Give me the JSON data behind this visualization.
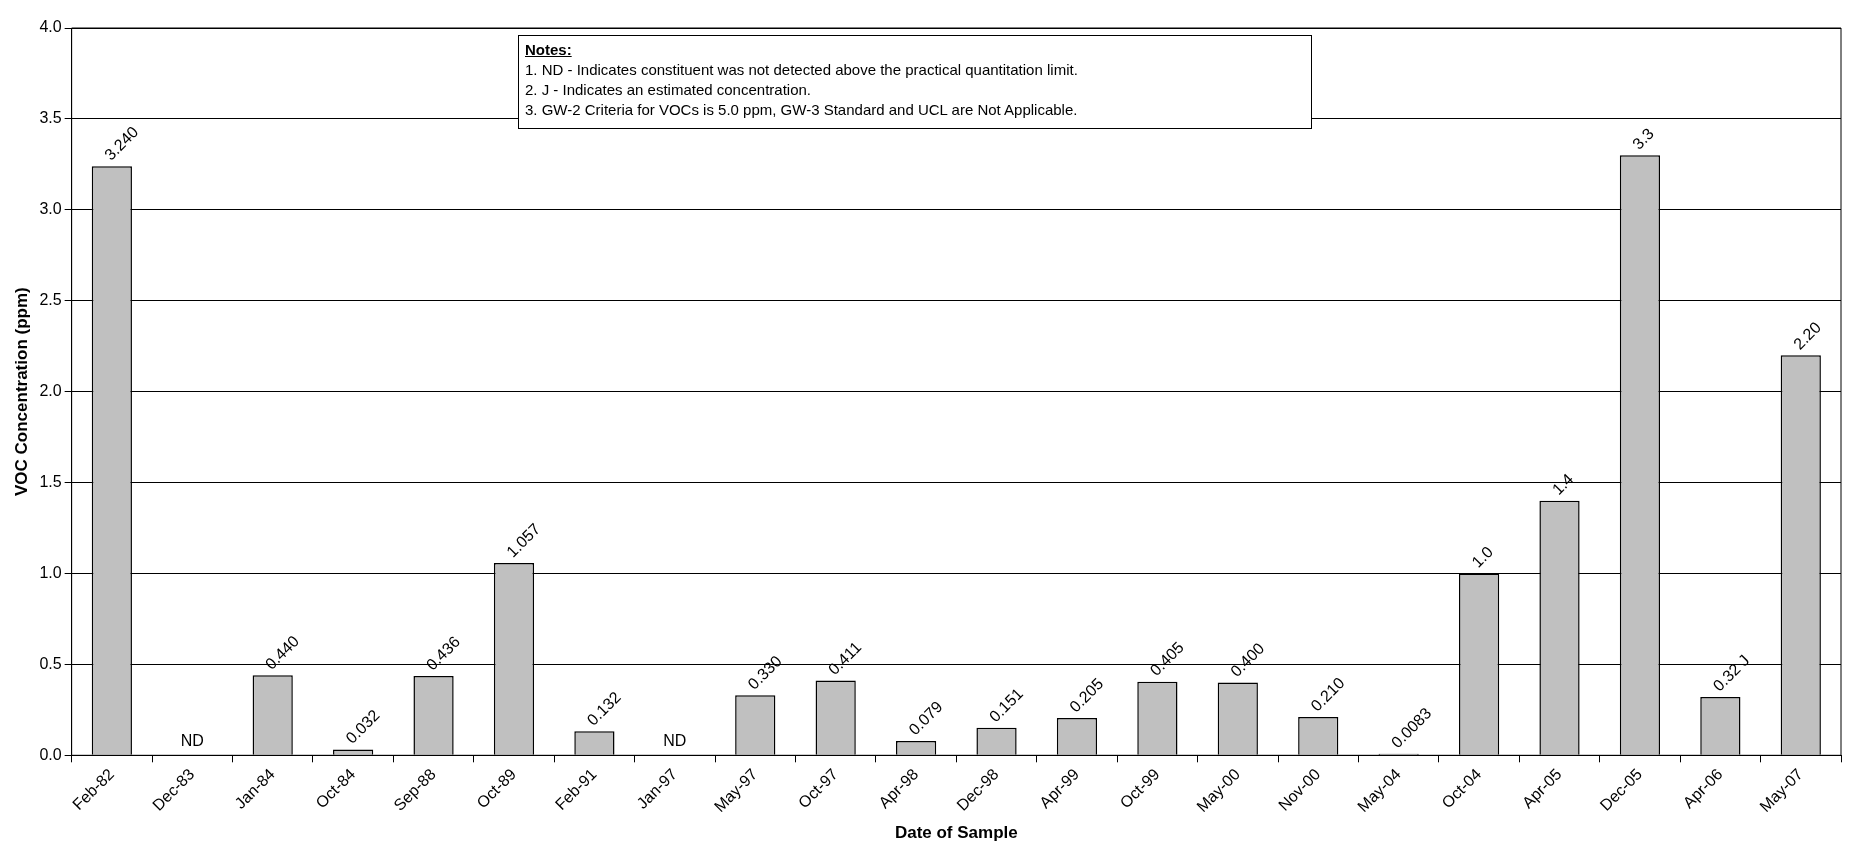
{
  "chart_data": {
    "type": "bar",
    "xlabel": "Date of Sample",
    "ylabel": "VOC Concentration (ppm)",
    "categories": [
      "Feb-82",
      "Dec-83",
      "Jan-84",
      "Oct-84",
      "Sep-88",
      "Oct-89",
      "Feb-91",
      "Jan-97",
      "May-97",
      "Oct-97",
      "Apr-98",
      "Dec-98",
      "Apr-99",
      "Oct-99",
      "May-00",
      "Nov-00",
      "May-04",
      "Oct-04",
      "Apr-05",
      "Dec-05",
      "Apr-06",
      "May-07"
    ],
    "values": [
      3.24,
      null,
      0.44,
      0.032,
      0.436,
      1.057,
      0.132,
      null,
      0.33,
      0.411,
      0.079,
      0.151,
      0.205,
      0.405,
      0.4,
      0.21,
      0.0083,
      1.0,
      1.4,
      3.3,
      0.32,
      2.2
    ],
    "value_labels": [
      "3.240",
      "ND",
      "0.440",
      "0.032",
      "0.436",
      "1.057",
      "0.132",
      "ND",
      "0.330",
      "0.411",
      "0.079",
      "0.151",
      "0.205",
      "0.405",
      "0.400",
      "0.210",
      "0.0083",
      "1.0",
      "1.4",
      "3.3",
      "0.32 J",
      "2.20"
    ],
    "color": "#c0c0c0",
    "ylim": [
      0,
      4
    ],
    "yticks": [
      {
        "value": 0,
        "label": "0.0"
      },
      {
        "value": 0.5,
        "label": "0.5"
      },
      {
        "value": 1,
        "label": "1.0"
      },
      {
        "value": 1.5,
        "label": "1.5"
      },
      {
        "value": 2,
        "label": "2.0"
      },
      {
        "value": 2.5,
        "label": "2.5"
      },
      {
        "value": 3,
        "label": "3.0"
      },
      {
        "value": 3.5,
        "label": "3.5"
      },
      {
        "value": 4,
        "label": "4.0"
      }
    ],
    "grid": "y",
    "legend": false,
    "annotations": [
      "Notes:",
      "1.  ND - Indicates constituent was not detected above the practical quantitation limit.",
      "2.  J - Indicates an estimated concentration.",
      "3. GW-2 Criteria for VOCs is 5.0 ppm, GW-3 Standard and UCL are Not Applicable."
    ]
  }
}
